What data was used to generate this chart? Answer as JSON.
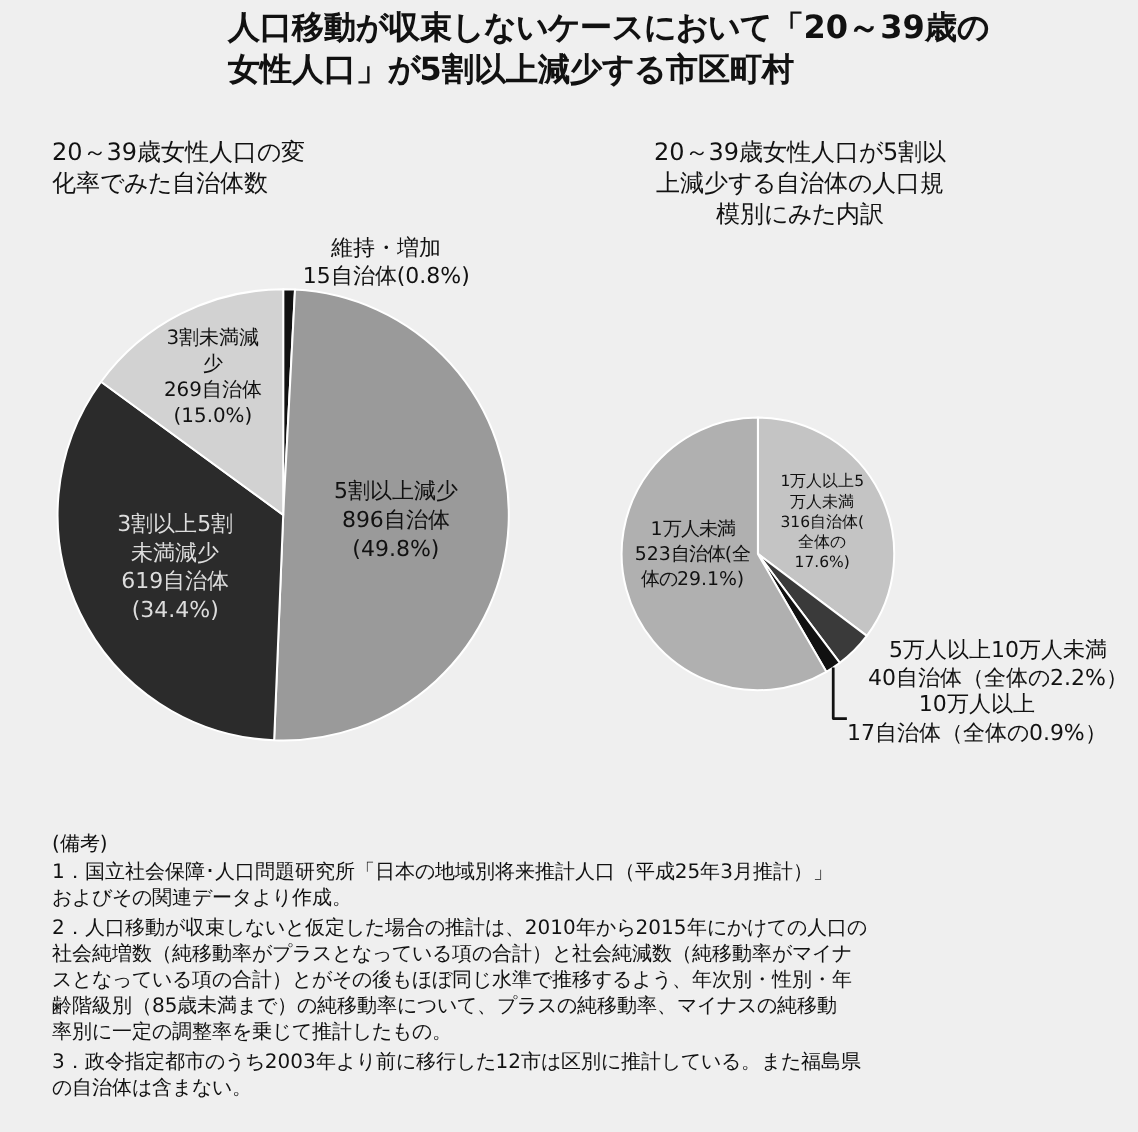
{
  "chart_data": [
    {
      "type": "pie",
      "title": "人口移動が収束しないケースにおいて「20～39歳の女性人口」が5割以上減少する市区町村",
      "subtitle": "20～39歳女性人口の変化率でみた自治体数",
      "categories": [
        "維持・増加",
        "5割以上減少",
        "3割以上5割未満減少",
        "3割未満減少"
      ],
      "values": [
        15,
        896,
        619,
        269
      ],
      "value_labels": [
        "15自治体(0.8%)",
        "896自治体(49.8%)",
        "619自治体(34.4%)",
        "269自治体(15.0%)"
      ],
      "colors": [
        "#111111",
        "#9a9a9a",
        "#2b2b2b",
        "#d2d2d2"
      ],
      "legend": false,
      "annotations": [
        "(備考)",
        "1．国立社会保障･人口問題研究所「日本の地域別将来推計人口（平成25年3月推計）」およびその関連データより作成。",
        "2．人口移動が収束しないと仮定した場合の推計は、2010年から2015年にかけての人口の社会純増数（純移動率がプラスとなっている項の合計）と社会純減数（純移動率がマイナスとなっている項の合計）とがその後もほぼ同じ水準で推移するよう、年次別・性別・年齢階級別（85歳未満まで）の純移動率について、プラスの純移動率、マイナスの純移動率別に一定の調整率を乗じて推計したもの。",
        "3．政令指定都市のうち2003年より前に移行した12市は区別に推計している。また福島県の自治体は含まない。"
      ]
    },
    {
      "type": "pie",
      "title": "20～39歳女性人口が5割以上減少する自治体の人口規模別にみた内訳",
      "categories": [
        "1万人以上5万人未満",
        "5万人以上10万人未満",
        "10万人以上",
        "1万人未満"
      ],
      "values": [
        316,
        40,
        17,
        523
      ],
      "value_labels": [
        "316自治体(全体の17.6%)",
        "40自治体（全体の2.2%）",
        "17自治体（全体の0.9%）",
        "523自治体(全体の29.1%)"
      ],
      "colors": [
        "#c4c4c4",
        "#3a3a3a",
        "#111111",
        "#b0b0b0"
      ],
      "legend": false
    }
  ]
}
